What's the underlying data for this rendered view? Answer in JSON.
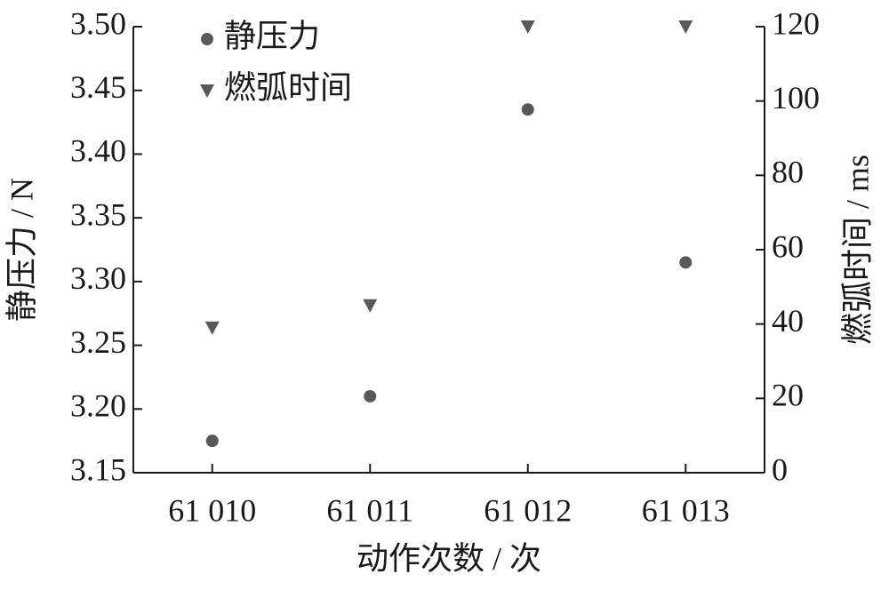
{
  "chart_data": {
    "type": "scatter",
    "x_label": "动作次数 / 次",
    "y_label": "静压力 / N",
    "y2_label": "燃弧时间 / ms",
    "categories": [
      "61 010",
      "61 011",
      "61 012",
      "61 013"
    ],
    "series": [
      {
        "name": "静压力",
        "color": "#595959",
        "marker": "circle",
        "values": [
          3.175,
          3.21,
          3.435,
          3.315
        ]
      },
      {
        "name": "燃弧时间",
        "color": "#595959",
        "marker": "triangle-down",
        "axis": "y2",
        "values": [
          39,
          45,
          120,
          120
        ]
      }
    ],
    "ylim": [
      3.15,
      3.5
    ],
    "yticks": [
      {
        "value": 3.15,
        "label": "3.15"
      },
      {
        "value": 3.2,
        "label": "3.20"
      },
      3.25,
      {
        "value": 3.3,
        "label": "3.30"
      },
      3.35,
      {
        "value": 3.4,
        "label": "3.40"
      },
      3.45,
      {
        "value": 3.5,
        "label": "3.50"
      }
    ],
    "y2lim": [
      0,
      120
    ],
    "y2ticks": [
      0,
      20,
      40,
      60,
      80,
      100,
      120
    ],
    "legend": "upper left"
  }
}
